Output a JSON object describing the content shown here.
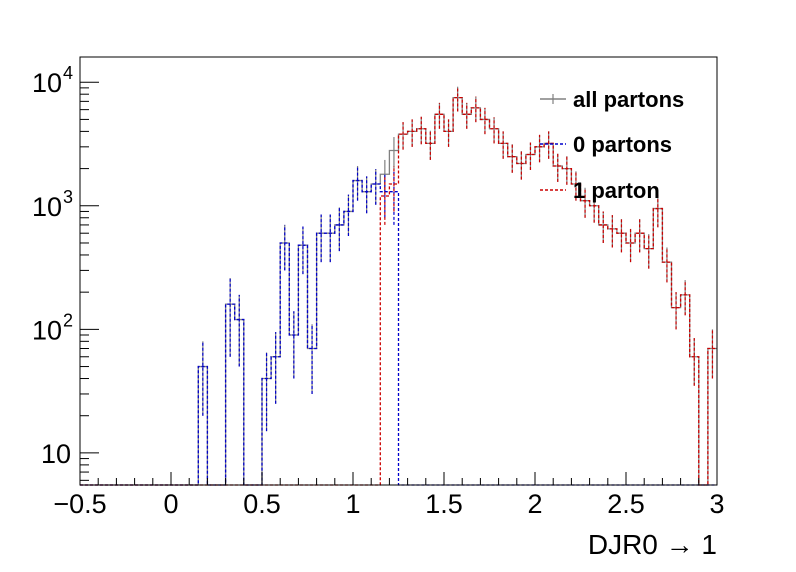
{
  "chart_data": {
    "type": "histogram",
    "xlabel": "DJR0 → 1",
    "ylabel": "",
    "xlim": [
      -0.5,
      3.0
    ],
    "ylim": [
      5.5,
      16000
    ],
    "log_y": true,
    "grid": false,
    "legend_position": "top-right",
    "x_ticks": [
      {
        "value": -0.5,
        "label": "−0.5"
      },
      {
        "value": 0,
        "label": "0"
      },
      {
        "value": 0.5,
        "label": "0.5"
      },
      {
        "value": 1,
        "label": "1"
      },
      {
        "value": 1.5,
        "label": "1.5"
      },
      {
        "value": 2,
        "label": "2"
      },
      {
        "value": 2.5,
        "label": "2.5"
      },
      {
        "value": 3,
        "label": "3"
      }
    ],
    "y_ticks": [
      {
        "value": 10,
        "label": "10"
      },
      {
        "value": 100,
        "label": "10",
        "exp": "2"
      },
      {
        "value": 1000,
        "label": "10",
        "exp": "3"
      },
      {
        "value": 10000,
        "label": "10",
        "exp": "4"
      }
    ],
    "bin_edges_start": -0.5,
    "bin_width": 0.05,
    "series": [
      {
        "name": "all partons",
        "color": "#808080",
        "dashed": false,
        "values": [
          0,
          0,
          0,
          0,
          0,
          0,
          0,
          0,
          0,
          0,
          0,
          0,
          0,
          50,
          0,
          0,
          160,
          120,
          0,
          0,
          40,
          60,
          500,
          90,
          480,
          70,
          600,
          600,
          700,
          900,
          1600,
          1300,
          1500,
          1800,
          2800,
          3800,
          4000,
          4200,
          3200,
          5500,
          4000,
          7500,
          5500,
          6200,
          5000,
          4200,
          3200,
          2500,
          2200,
          2600,
          3000,
          3200,
          2100,
          2000,
          1500,
          1100,
          1000,
          700,
          650,
          600,
          500,
          600,
          450,
          950,
          350,
          150,
          190,
          60,
          0,
          70
        ],
        "errors": [
          0,
          0,
          0,
          0,
          0,
          0,
          0,
          0,
          0,
          0,
          0,
          0,
          0,
          30,
          0,
          0,
          100,
          70,
          0,
          0,
          25,
          35,
          200,
          50,
          200,
          40,
          250,
          250,
          270,
          330,
          500,
          430,
          480,
          550,
          800,
          950,
          1000,
          1050,
          850,
          1300,
          1000,
          1700,
          1300,
          1450,
          1200,
          1000,
          800,
          650,
          570,
          650,
          750,
          800,
          540,
          520,
          400,
          300,
          270,
          200,
          190,
          180,
          150,
          180,
          140,
          280,
          110,
          50,
          60,
          25,
          0,
          30
        ]
      },
      {
        "name": "0 partons",
        "color": "#0000cc",
        "dashed": true,
        "values": [
          0,
          0,
          0,
          0,
          0,
          0,
          0,
          0,
          0,
          0,
          0,
          0,
          0,
          50,
          0,
          0,
          160,
          120,
          0,
          0,
          40,
          60,
          500,
          90,
          480,
          70,
          600,
          600,
          700,
          900,
          1600,
          1300,
          1500,
          1300,
          1300
        ],
        "errors": [
          0,
          0,
          0,
          0,
          0,
          0,
          0,
          0,
          0,
          0,
          0,
          0,
          0,
          30,
          0,
          0,
          100,
          70,
          0,
          0,
          25,
          35,
          200,
          50,
          200,
          40,
          250,
          250,
          270,
          330,
          500,
          430,
          480,
          500,
          600
        ]
      },
      {
        "name": "1 parton",
        "color": "#cc0000",
        "dashed": true,
        "values": [
          0,
          0,
          0,
          0,
          0,
          0,
          0,
          0,
          0,
          0,
          0,
          0,
          0,
          0,
          0,
          0,
          0,
          0,
          0,
          0,
          0,
          0,
          0,
          0,
          0,
          0,
          0,
          0,
          0,
          0,
          0,
          0,
          0,
          1200,
          1500,
          3800,
          4000,
          4200,
          3200,
          5500,
          4000,
          7500,
          5500,
          6200,
          5000,
          4200,
          3200,
          2500,
          2200,
          2600,
          3000,
          3200,
          2100,
          2000,
          1500,
          1100,
          1000,
          700,
          650,
          600,
          500,
          600,
          450,
          950,
          350,
          150,
          190,
          60,
          0,
          70
        ],
        "errors": [
          0,
          0,
          0,
          0,
          0,
          0,
          0,
          0,
          0,
          0,
          0,
          0,
          0,
          0,
          0,
          0,
          0,
          0,
          0,
          0,
          0,
          0,
          0,
          0,
          0,
          0,
          0,
          0,
          0,
          0,
          0,
          0,
          0,
          500,
          600,
          950,
          1000,
          1050,
          850,
          1300,
          1000,
          1700,
          1300,
          1450,
          1200,
          1000,
          800,
          650,
          570,
          650,
          750,
          800,
          540,
          520,
          400,
          300,
          270,
          200,
          190,
          180,
          150,
          180,
          140,
          280,
          110,
          50,
          60,
          25,
          0,
          30
        ]
      }
    ]
  }
}
